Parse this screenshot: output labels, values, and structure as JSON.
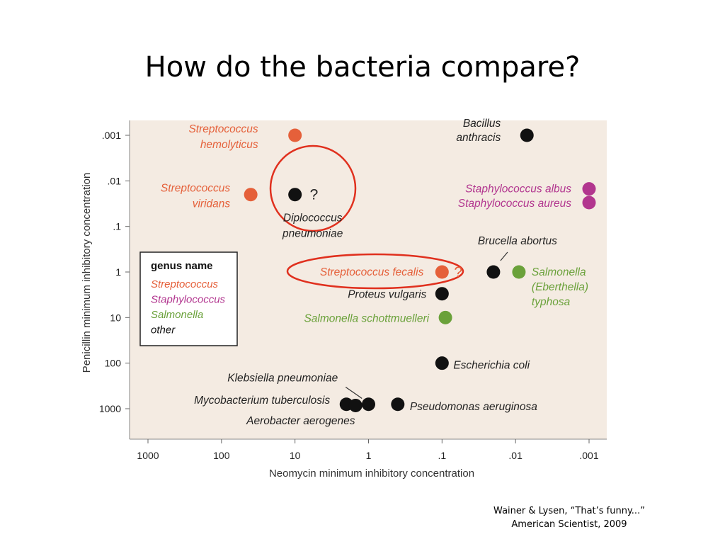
{
  "slide": {
    "title": "How do the bacteria compare?",
    "citation_line1": "Wainer & Lysen, “That’s funny...”",
    "citation_line2": "American Scientist, 2009"
  },
  "colors": {
    "streptococcus": "#e5603a",
    "staphylococcus": "#b2368f",
    "salmonella": "#6aa13a",
    "other": "#111111",
    "highlight": "#e0301e",
    "panel": "#f4ebe2"
  },
  "chart_data": {
    "type": "scatter",
    "xlabel": "Neomycin minimum inhibitory concentration",
    "ylabel": "Penicillin minimum inhibitory concentration",
    "x_scale": "log-reversed",
    "y_scale": "log-reversed",
    "xlim": [
      1000,
      0.001
    ],
    "ylim": [
      0.001,
      1000
    ],
    "x_ticks": [
      1000,
      100,
      10,
      1,
      0.1,
      0.01,
      0.001
    ],
    "x_tick_labels": [
      "1000",
      "100",
      "10",
      "1",
      ".1",
      ".01",
      ".001"
    ],
    "y_ticks": [
      0.001,
      0.01,
      0.1,
      1,
      10,
      100,
      1000
    ],
    "y_tick_labels": [
      ".001",
      ".01",
      ".1",
      "1",
      "10",
      "100",
      "1000"
    ],
    "legend": {
      "title": "genus name",
      "placement": "middle-left",
      "entries": [
        {
          "label": "Streptococcus",
          "group": "streptococcus"
        },
        {
          "label": "Staphylococcus",
          "group": "staphylococcus"
        },
        {
          "label": "Salmonella",
          "group": "salmonella"
        },
        {
          "label": "other",
          "group": "other"
        }
      ]
    },
    "points": [
      {
        "name": "Streptococcus hemolyticus",
        "lines": [
          "Streptococcus",
          "hemolyticus"
        ],
        "group": "streptococcus",
        "x": 10,
        "y": 0.001,
        "label_side": "left"
      },
      {
        "name": "Streptococcus viridans",
        "lines": [
          "Streptococcus",
          "viridans"
        ],
        "group": "streptococcus",
        "x": 40,
        "y": 0.02,
        "label_side": "left"
      },
      {
        "name": "Diplococcus pneumoniae",
        "lines": [
          "Diplococcus",
          "pneumoniae"
        ],
        "group": "other",
        "x": 10,
        "y": 0.02,
        "label_side": "below",
        "mark": "?",
        "circled": true
      },
      {
        "name": "Bacillus anthracis",
        "lines": [
          "Bacillus",
          "anthracis"
        ],
        "group": "other",
        "x": 0.007,
        "y": 0.001,
        "label_side": "left"
      },
      {
        "name": "Staphylococcus albus",
        "lines": [
          "Staphylococcus albus"
        ],
        "group": "staphylococcus",
        "x": 0.001,
        "y": 0.015,
        "label_side": "left"
      },
      {
        "name": "Staphylococcus aureus",
        "lines": [
          "Staphylococcus aureus"
        ],
        "group": "staphylococcus",
        "x": 0.001,
        "y": 0.03,
        "label_side": "left"
      },
      {
        "name": "Brucella abortus",
        "lines": [
          "Brucella abortus"
        ],
        "group": "other",
        "x": 0.02,
        "y": 1,
        "label_side": "above-leader"
      },
      {
        "name": "Streptococcus fecalis",
        "lines": [
          "Streptococcus fecalis"
        ],
        "group": "streptococcus",
        "x": 0.1,
        "y": 1,
        "label_side": "left",
        "mark": "?",
        "circled": true
      },
      {
        "name": "Salmonella (Eberthella) typhosa",
        "lines": [
          "Salmonella",
          "(Eberthella)",
          "typhosa"
        ],
        "group": "salmonella",
        "x": 0.009,
        "y": 1,
        "label_side": "right"
      },
      {
        "name": "Proteus vulgaris",
        "lines": [
          "Proteus vulgaris"
        ],
        "group": "other",
        "x": 0.1,
        "y": 3,
        "label_side": "left"
      },
      {
        "name": "Salmonella schottmuelleri",
        "lines": [
          "Salmonella schottmuelleri"
        ],
        "group": "salmonella",
        "x": 0.09,
        "y": 10,
        "label_side": "left"
      },
      {
        "name": "Escherichia coli",
        "lines": [
          "Escherichia coli"
        ],
        "group": "other",
        "x": 0.1,
        "y": 100,
        "label_side": "right"
      },
      {
        "name": "Mycobacterium tuberculosis",
        "lines": [
          "Mycobacterium tuberculosis"
        ],
        "group": "other",
        "x": 2,
        "y": 800,
        "label_side": "left-up"
      },
      {
        "name": "Klebsiella pneumoniae",
        "lines": [
          "Klebsiella pneumoniae"
        ],
        "group": "other",
        "x": 1.5,
        "y": 850,
        "label_side": "above-leader"
      },
      {
        "name": "Aerobacter aerogenes",
        "lines": [
          "Aerobacter aerogenes"
        ],
        "group": "other",
        "x": 1,
        "y": 800,
        "label_side": "below-left"
      },
      {
        "name": "Pseudomonas aeruginosa",
        "lines": [
          "Pseudomonas aeruginosa"
        ],
        "group": "other",
        "x": 0.4,
        "y": 800,
        "label_side": "right"
      }
    ]
  }
}
